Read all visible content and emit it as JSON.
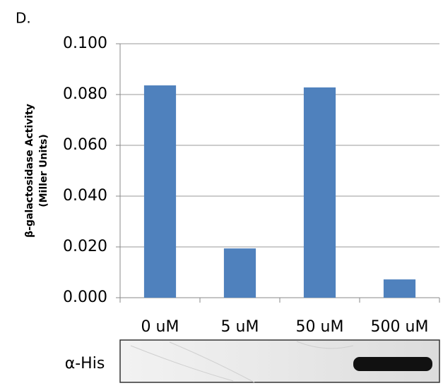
{
  "chart_data": {
    "type": "bar",
    "panel_label": "D.",
    "ylabel": [
      "β-galactosidase Activity",
      "(Miller Units)"
    ],
    "categories": [
      "0 uM",
      "5 uM",
      "50 uM",
      "500 uM"
    ],
    "values": [
      0.0836,
      0.0194,
      0.0828,
      0.0072
    ],
    "color": "#4f81bd",
    "ylim": [
      0,
      0.1
    ],
    "yticks": [
      {
        "value": 0,
        "label": "0.000"
      },
      {
        "value": 0.02,
        "label": "0.020"
      },
      {
        "value": 0.04,
        "label": "0.040"
      },
      {
        "value": 0.06,
        "label": "0.060"
      },
      {
        "value": 0.08,
        "label": "0.080"
      },
      {
        "value": 0.1,
        "label": "0.100"
      }
    ],
    "grid": true
  },
  "blot": {
    "label": "α-His"
  }
}
